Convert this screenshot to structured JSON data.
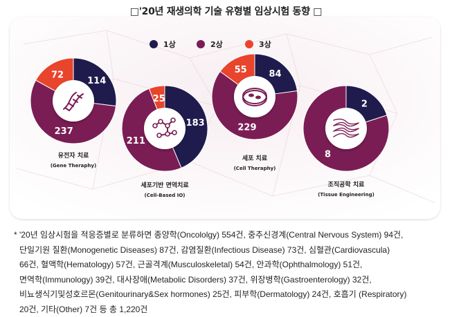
{
  "title": "□'20년 재생의학 기술 유형별 임상시험 동향 □",
  "chart_data": {
    "type": "pie",
    "legend": [
      {
        "name": "1상",
        "color": "#1f1b4d"
      },
      {
        "name": "2상",
        "color": "#7b1d55"
      },
      {
        "name": "3상",
        "color": "#e8452c"
      }
    ],
    "legend_placement": "top-right",
    "charts": [
      {
        "label_ko": "유전자 치료",
        "label_en": "(Gene Theraphy)",
        "icon": "dna-icon",
        "values": {
          "1상": 114,
          "2상": 237,
          "3상": 72
        }
      },
      {
        "label_ko": "세포기반 면역치료",
        "label_en": "(Cell-Based IO)",
        "icon": "molecule-icon",
        "values": {
          "1상": 183,
          "2상": 211,
          "3상": 25
        }
      },
      {
        "label_ko": "세포 치료",
        "label_en": "(Cell Theraphy)",
        "icon": "petri-dish-icon",
        "values": {
          "1상": 84,
          "2상": 229,
          "3상": 55
        }
      },
      {
        "label_ko": "조직공학 치료",
        "label_en": "(Tissue Engineering)",
        "icon": "tissue-fiber-icon",
        "values": {
          "1상": 2,
          "2상": 8,
          "3상": 0
        }
      }
    ]
  },
  "note": {
    "star": "*",
    "lines": [
      "'20년 임상시험을 적응증별로 분류하면 종양학(Oncololgy) 554건, 중추신경계(Central Nervous System) 94건,",
      "단일기원 질환(Monogenetic Diseases) 87건, 감염질환(Infectious Disease) 73건, 심혈관(Cardiovascula)",
      "66건, 혈액학(Hematology) 57건, 근골격계(Musculoskeletal) 54건, 안과학(Ophthalmology) 51건,",
      "면역학(Immunology) 39건, 대사장애(Metabolic Disorders) 37건, 위장병학(Gastroenterology) 32건,",
      "비뇨생식기및성호르몬(Genitourinary&Sex hormones) 25건, 피부학(Dermatology) 24건, 호흡기 (Respiratory)",
      "20건, 기타(Other) 7건 등 총 1,220건"
    ]
  }
}
